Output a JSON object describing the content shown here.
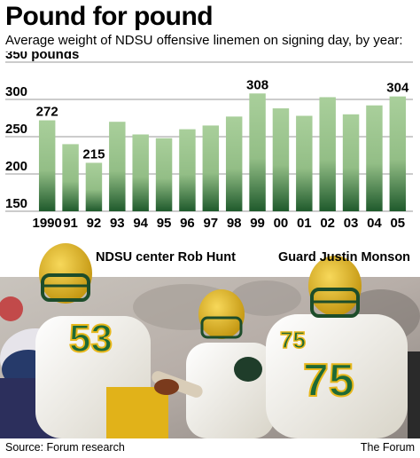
{
  "header": {
    "title": "Pound for pound",
    "subtitle": "Average weight of NDSU offensive linemen on signing day, by year:"
  },
  "captions": {
    "left": "NDSU center Rob Hunt",
    "right": "Guard Justin Monson"
  },
  "footer": {
    "source": "Source: Forum research",
    "credit": "The Forum"
  },
  "colors": {
    "bar_top": "#a9cf9b",
    "bar_bottom": "#1f5a2c",
    "jersey": "#f3f0e6",
    "helmet": "#e8b81c",
    "number": "#1e6a35"
  },
  "chart_data": {
    "type": "bar",
    "categories": [
      "1990",
      "91",
      "92",
      "93",
      "94",
      "95",
      "96",
      "97",
      "98",
      "99",
      "00",
      "01",
      "02",
      "03",
      "04",
      "05"
    ],
    "values": [
      272,
      240,
      215,
      270,
      253,
      248,
      260,
      265,
      277,
      308,
      288,
      278,
      303,
      280,
      292,
      304
    ],
    "labeled_values": [
      "272",
      "",
      "215",
      "",
      "",
      "",
      "",
      "",
      "",
      "308",
      "",
      "",
      "",
      "",
      "",
      "304"
    ],
    "ylim": [
      150,
      350
    ],
    "yticks": [
      150,
      200,
      250,
      300,
      350
    ],
    "ytick_labels": [
      "150",
      "200",
      "250",
      "300",
      "350 pounds"
    ],
    "grid": true
  }
}
